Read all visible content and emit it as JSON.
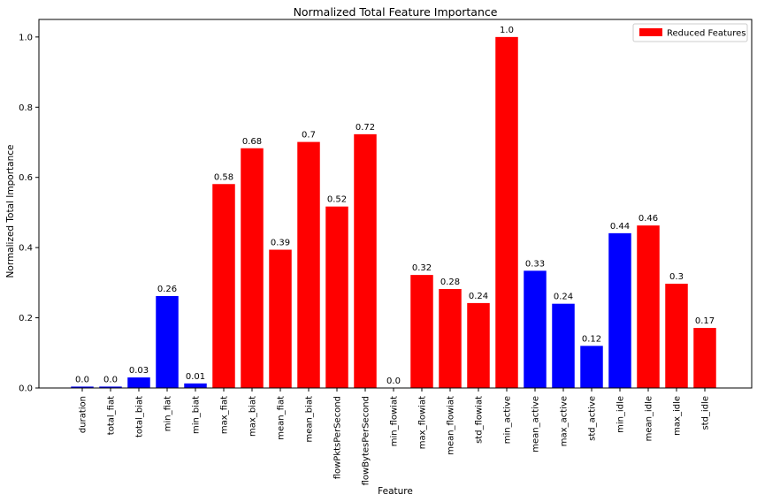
{
  "chart_data": {
    "type": "bar",
    "title": "Normalized Total Feature Importance",
    "xlabel": "Feature",
    "ylabel": "Normalized Total Importance",
    "ylim": [
      0,
      1.05
    ],
    "yticks": [
      "0.0",
      "0.2",
      "0.4",
      "0.6",
      "0.8",
      "1.0"
    ],
    "grid": false,
    "legend": {
      "position": "top-right",
      "label": "Reduced Features",
      "color": "#ff0000"
    },
    "colors": {
      "reduced": "#ff0000",
      "other": "#0000ff"
    },
    "categories": [
      "duration",
      "total_fiat",
      "total_biat",
      "min_fiat",
      "min_biat",
      "max_fiat",
      "max_biat",
      "mean_fiat",
      "mean_biat",
      "flowPktsPerSecond",
      "flowBytesPerSecond",
      "min_flowiat",
      "max_flowiat",
      "mean_flowiat",
      "std_flowiat",
      "min_active",
      "mean_active",
      "max_active",
      "std_active",
      "min_idle",
      "mean_idle",
      "max_idle",
      "std_idle"
    ],
    "values": [
      0.004,
      0.004,
      0.03,
      0.262,
      0.013,
      0.581,
      0.683,
      0.394,
      0.701,
      0.517,
      0.723,
      0.0,
      0.322,
      0.282,
      0.242,
      1.0,
      0.334,
      0.24,
      0.12,
      0.441,
      0.463,
      0.297,
      0.171
    ],
    "labels": [
      "0.0",
      "0.0",
      "0.03",
      "0.26",
      "0.01",
      "0.58",
      "0.68",
      "0.39",
      "0.7",
      "0.52",
      "0.72",
      "0.0",
      "0.32",
      "0.28",
      "0.24",
      "1.0",
      "0.33",
      "0.24",
      "0.12",
      "0.44",
      "0.46",
      "0.3",
      "0.17"
    ],
    "reduced": [
      false,
      false,
      false,
      false,
      false,
      true,
      true,
      true,
      true,
      true,
      true,
      false,
      true,
      true,
      true,
      true,
      false,
      false,
      false,
      false,
      true,
      true,
      true
    ]
  }
}
